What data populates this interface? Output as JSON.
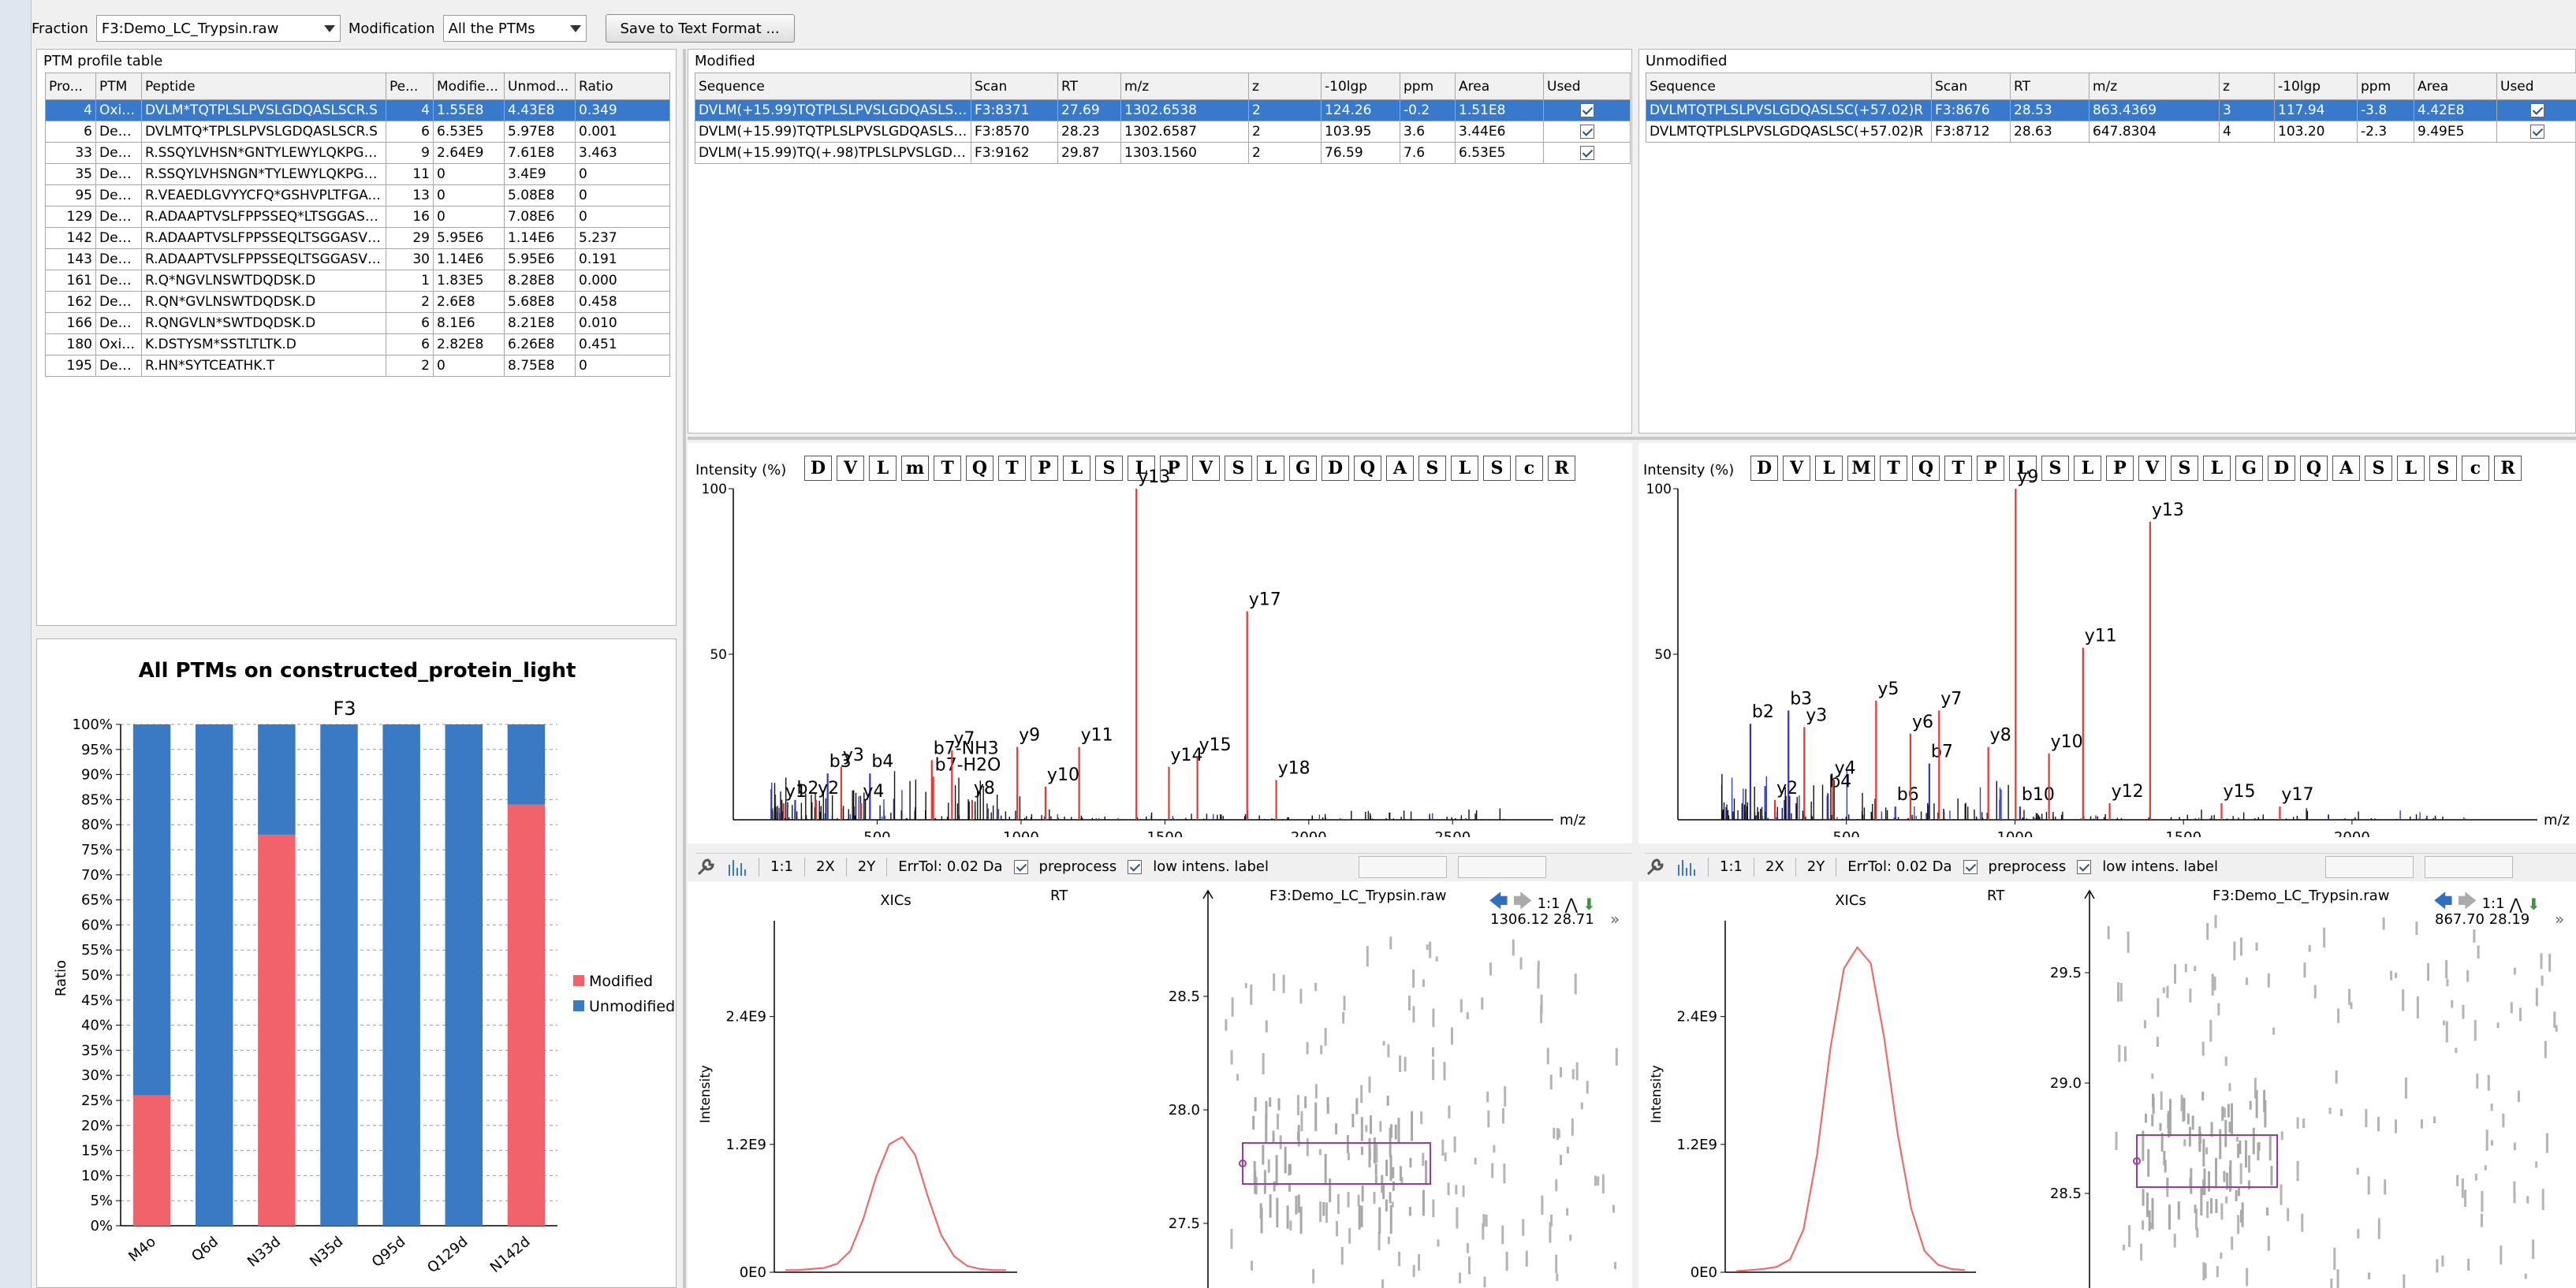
{
  "toolbar": {
    "fraction_label": "Fraction",
    "fraction_value": "F3:Demo_LC_Trypsin.raw",
    "modification_label": "Modification",
    "modification_value": "All the PTMs",
    "save_button": "Save to Text Format ..."
  },
  "ptm_table": {
    "title": "PTM profile table",
    "headers": [
      "Pro...",
      "PTM",
      "Peptide",
      "Pe...",
      "Modifie...",
      "Unmod...",
      "Ratio"
    ],
    "rows": [
      [
        "4",
        "Oxid...",
        "DVLM*TQTPLSLPVSLGDQASLSCR.S",
        "4",
        "1.55E8",
        "4.43E8",
        "0.349"
      ],
      [
        "6",
        "Dea...",
        "DVLMTQ*TPLSLPVSLGDQASLSCR.S",
        "6",
        "6.53E5",
        "5.97E8",
        "0.001"
      ],
      [
        "33",
        "Dea...",
        "R.SSQYLVHSN*GNTYLEWYLQKPGQ...",
        "9",
        "2.64E9",
        "7.61E8",
        "3.463"
      ],
      [
        "35",
        "Dea...",
        "R.SSQYLVHSNGN*TYLEWYLQKPGQ...",
        "11",
        "0",
        "3.4E9",
        "0"
      ],
      [
        "95",
        "Dea...",
        "R.VEAEDLGVYYCFQ*GSHVPLTFGA...",
        "13",
        "0",
        "5.08E8",
        "0"
      ],
      [
        "129",
        "Dea...",
        "R.ADAAPTVSLFPPSSEQ*LTSGGASV...",
        "16",
        "0",
        "7.08E6",
        "0"
      ],
      [
        "142",
        "Dea...",
        "R.ADAAPTVSLFPPSSEQLTSGGASVV...",
        "29",
        "5.95E6",
        "1.14E6",
        "5.237"
      ],
      [
        "143",
        "Dea...",
        "R.ADAAPTVSLFPPSSEQLTSGGASVV...",
        "30",
        "1.14E6",
        "5.95E6",
        "0.191"
      ],
      [
        "161",
        "Dea...",
        "R.Q*NGVLNSWTDQDSK.D",
        "1",
        "1.83E5",
        "8.28E8",
        "0.000"
      ],
      [
        "162",
        "Dea...",
        "R.QN*GVLNSWTDQDSK.D",
        "2",
        "2.6E8",
        "5.68E8",
        "0.458"
      ],
      [
        "166",
        "Dea...",
        "R.QNGVLN*SWTDQDSK.D",
        "6",
        "8.1E6",
        "8.21E8",
        "0.010"
      ],
      [
        "180",
        "Oxid...",
        "K.DSTYSM*SSTLTLTK.D",
        "6",
        "2.82E8",
        "6.26E8",
        "0.451"
      ],
      [
        "195",
        "Dea...",
        "R.HN*SYTCEATHK.T",
        "2",
        "0",
        "8.75E8",
        "0"
      ]
    ]
  },
  "modified": {
    "title": "Modified",
    "headers": [
      "Sequence",
      "Scan",
      "RT",
      "m/z",
      "z",
      "-10lgp",
      "ppm",
      "Area",
      "Used"
    ],
    "rows": [
      [
        "DVLM(+15.99)TQTPLSLPVSLGDQASLSC...",
        "F3:8371",
        "27.69",
        "1302.6538",
        "2",
        "124.26",
        "-0.2",
        "1.51E8"
      ],
      [
        "DVLM(+15.99)TQTPLSLPVSLGDQASLSC...",
        "F3:8570",
        "28.23",
        "1302.6587",
        "2",
        "103.95",
        "3.6",
        "3.44E6"
      ],
      [
        "DVLM(+15.99)TQ(+.98)TPLSLPVSLGDQ...",
        "F3:9162",
        "29.87",
        "1303.1560",
        "2",
        "76.59",
        "7.6",
        "6.53E5"
      ]
    ]
  },
  "unmodified": {
    "title": "Unmodified",
    "headers": [
      "Sequence",
      "Scan",
      "RT",
      "m/z",
      "z",
      "-10lgp",
      "ppm",
      "Area",
      "Used"
    ],
    "rows": [
      [
        "DVLMTQTPLSLPVSLGDQASLSC(+57.02)R",
        "F3:8676",
        "28.53",
        "863.4369",
        "3",
        "117.94",
        "-3.8",
        "4.42E8"
      ],
      [
        "DVLMTQTPLSLPVSLGDQASLSC(+57.02)R",
        "F3:8712",
        "28.63",
        "647.8304",
        "4",
        "103.20",
        "-2.3",
        "9.49E5"
      ]
    ]
  },
  "chart_data": [
    {
      "type": "bar",
      "title": "All PTMs on constructed_protein_light",
      "subtitle": "F3",
      "ylabel": "Ratio",
      "ylim": [
        0,
        100
      ],
      "yticks": [
        "0%",
        "5%",
        "10%",
        "15%",
        "20%",
        "25%",
        "30%",
        "35%",
        "40%",
        "45%",
        "50%",
        "55%",
        "60%",
        "65%",
        "70%",
        "75%",
        "80%",
        "85%",
        "90%",
        "95%",
        "100%"
      ],
      "categories": [
        "M4o",
        "Q6d",
        "N33d",
        "N35d",
        "Q95d",
        "Q129d",
        "N142d"
      ],
      "series": [
        {
          "name": "Modified",
          "color": "#f2626a",
          "values": [
            26,
            0,
            78,
            0,
            0,
            0,
            84
          ]
        },
        {
          "name": "Unmodified",
          "color": "#3a7ac4",
          "values": [
            74,
            100,
            22,
            100,
            100,
            100,
            16
          ]
        }
      ],
      "legend": "right",
      "grid": true
    },
    {
      "type": "bar",
      "title": "",
      "seq": [
        "D",
        "V",
        "L",
        "m",
        "T",
        "Q",
        "T",
        "P",
        "L",
        "S",
        "L",
        "P",
        "V",
        "S",
        "L",
        "G",
        "D",
        "Q",
        "A",
        "S",
        "L",
        "S",
        "c",
        "R"
      ],
      "ylabel": "Intensity (%)",
      "xlabel": "m/z",
      "xlim": [
        0,
        2850
      ],
      "ylim": [
        0,
        100
      ],
      "xticks": [
        "500",
        "1000",
        "1500",
        "2000",
        "2500"
      ],
      "yticks": [
        "50",
        "100"
      ],
      "peaks": [
        {
          "label": "y1",
          "mz": 175,
          "i": 5,
          "color": "#e33"
        },
        {
          "label": "b2",
          "mz": 215,
          "i": 6,
          "color": "#33c"
        },
        {
          "label": "b3",
          "mz": 328,
          "i": 14,
          "color": "#33c"
        },
        {
          "label": "y2",
          "mz": 288,
          "i": 6,
          "color": "#e33"
        },
        {
          "label": "y3",
          "mz": 375,
          "i": 16,
          "color": "#e33"
        },
        {
          "label": "b4",
          "mz": 475,
          "i": 14,
          "color": "#33c"
        },
        {
          "label": "y4",
          "mz": 445,
          "i": 5,
          "color": "#e33"
        },
        {
          "label": "b7-NH3",
          "mz": 690,
          "i": 18,
          "color": "#e33"
        },
        {
          "label": "b7-H2O",
          "mz": 695,
          "i": 13,
          "color": "#e33"
        },
        {
          "label": "y7",
          "mz": 760,
          "i": 21,
          "color": "#e33"
        },
        {
          "label": "y8",
          "mz": 830,
          "i": 6,
          "color": "#e33"
        },
        {
          "label": "y9",
          "mz": 987,
          "i": 22,
          "color": "#e33"
        },
        {
          "label": "y10",
          "mz": 1085,
          "i": 10,
          "color": "#e33"
        },
        {
          "label": "y11",
          "mz": 1202,
          "i": 22,
          "color": "#e33"
        },
        {
          "label": "y13",
          "mz": 1401,
          "i": 100,
          "color": "#e33"
        },
        {
          "label": "y14",
          "mz": 1514,
          "i": 16,
          "color": "#e33"
        },
        {
          "label": "y15",
          "mz": 1613,
          "i": 19,
          "color": "#e33"
        },
        {
          "label": "y17",
          "mz": 1786,
          "i": 63,
          "color": "#e33"
        },
        {
          "label": "y18",
          "mz": 1887,
          "i": 12,
          "color": "#e33"
        }
      ]
    },
    {
      "type": "bar",
      "title": "",
      "seq": [
        "D",
        "V",
        "L",
        "M",
        "T",
        "Q",
        "T",
        "P",
        "L",
        "S",
        "L",
        "P",
        "V",
        "S",
        "L",
        "G",
        "D",
        "Q",
        "A",
        "S",
        "L",
        "S",
        "c",
        "R"
      ],
      "ylabel": "Intensity (%)",
      "xlabel": "m/z",
      "xlim": [
        0,
        2550
      ],
      "ylim": [
        0,
        100
      ],
      "xticks": [
        "500",
        "1000",
        "1500",
        "2000"
      ],
      "yticks": [
        "50",
        "100"
      ],
      "peaks": [
        {
          "label": "b2",
          "mz": 215,
          "i": 29,
          "color": "#33c"
        },
        {
          "label": "y2",
          "mz": 288,
          "i": 6,
          "color": "#e33"
        },
        {
          "label": "b3",
          "mz": 328,
          "i": 33,
          "color": "#33c"
        },
        {
          "label": "y3",
          "mz": 375,
          "i": 28,
          "color": "#e33"
        },
        {
          "label": "b4",
          "mz": 445,
          "i": 8,
          "color": "#33c"
        },
        {
          "label": "y4",
          "mz": 460,
          "i": 12,
          "color": "#e33"
        },
        {
          "label": "y5",
          "mz": 588,
          "i": 36,
          "color": "#e33"
        },
        {
          "label": "b6",
          "mz": 645,
          "i": 4,
          "color": "#33c"
        },
        {
          "label": "y6",
          "mz": 690,
          "i": 26,
          "color": "#e33"
        },
        {
          "label": "b7",
          "mz": 746,
          "i": 17,
          "color": "#33c"
        },
        {
          "label": "y7",
          "mz": 775,
          "i": 33,
          "color": "#e33"
        },
        {
          "label": "y8",
          "mz": 921,
          "i": 22,
          "color": "#e33"
        },
        {
          "label": "b10",
          "mz": 1015,
          "i": 4,
          "color": "#33c"
        },
        {
          "label": "y9",
          "mz": 1002,
          "i": 100,
          "color": "#e33"
        },
        {
          "label": "y10",
          "mz": 1101,
          "i": 20,
          "color": "#e33"
        },
        {
          "label": "y11",
          "mz": 1202,
          "i": 52,
          "color": "#e33"
        },
        {
          "label": "y12",
          "mz": 1281,
          "i": 5,
          "color": "#e33"
        },
        {
          "label": "y13",
          "mz": 1401,
          "i": 90,
          "color": "#e33"
        },
        {
          "label": "y15",
          "mz": 1613,
          "i": 5,
          "color": "#e33"
        },
        {
          "label": "y17",
          "mz": 1786,
          "i": 4,
          "color": "#e33"
        }
      ]
    },
    {
      "type": "line",
      "title": "XICs",
      "ylabel": "Intensity",
      "ylim": [
        0,
        3.3
      ],
      "yticks": [
        "0E0",
        "1.2E9",
        "2.4E9"
      ],
      "y": [
        0.02,
        0.02,
        0.03,
        0.04,
        0.08,
        0.2,
        0.5,
        0.9,
        1.2,
        1.27,
        1.1,
        0.7,
        0.35,
        0.15,
        0.06,
        0.03,
        0.02,
        0.02
      ]
    },
    {
      "type": "line",
      "title": "XICs",
      "ylabel": "Intensity",
      "ylim": [
        0,
        3.3
      ],
      "yticks": [
        "0E0",
        "1.2E9",
        "2.4E9"
      ],
      "y": [
        0.01,
        0.02,
        0.03,
        0.05,
        0.12,
        0.4,
        1.1,
        2.1,
        2.85,
        3.05,
        2.9,
        2.2,
        1.3,
        0.6,
        0.2,
        0.07,
        0.03,
        0.02
      ]
    }
  ],
  "spectrum_toolbar": {
    "zoom1": "1:1",
    "zoom2": "2X",
    "zoom3": "2Y",
    "errtol": "ErrTol: 0.02 Da",
    "preprocess": "preprocess",
    "low_label": "low intens. label"
  },
  "lcms_left": {
    "rt_label": "RT",
    "title": "F3:Demo_LC_Trypsin.raw",
    "coord": "1306.12  28.71",
    "zoom": "1:1",
    "ticks": [
      "28.5",
      "28.0",
      "27.5"
    ]
  },
  "lcms_right": {
    "rt_label": "RT",
    "title": "F3:Demo_LC_Trypsin.raw",
    "coord": "867.70  28.19",
    "zoom": "1:1",
    "ticks": [
      "29.5",
      "29.0",
      "28.5"
    ]
  },
  "colors": {
    "selection": "#3979cc",
    "modified": "#f2626a",
    "unmodified": "#3a7ac4"
  }
}
